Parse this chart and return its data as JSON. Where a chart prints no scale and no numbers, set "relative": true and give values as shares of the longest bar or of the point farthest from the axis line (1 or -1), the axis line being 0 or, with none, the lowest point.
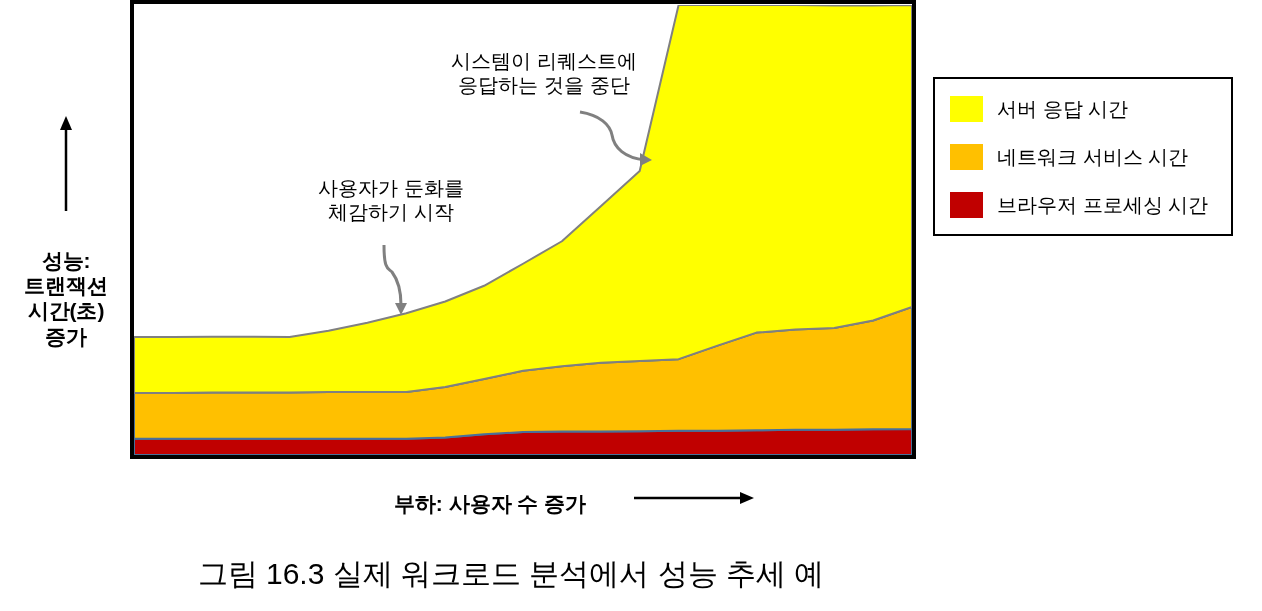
{
  "chart_data": {
    "type": "area",
    "stacked": true,
    "relative": true,
    "title": "그림 16.3 실제 워크로드 분석에서 성능 추세 예",
    "xlabel": "부하: 사용자 수 증가",
    "ylabel": "성능:\n트랜잭션\n시간(초)\n증가",
    "legend": "right",
    "grid": false,
    "categories": [
      null,
      null,
      null,
      null,
      null,
      null,
      null,
      null,
      null,
      null,
      null,
      null,
      null,
      null,
      null,
      null,
      null,
      null,
      null,
      null,
      null
    ],
    "series": [
      {
        "name": "브라우저 프로세싱 시간",
        "color": "#c00000",
        "values": [
          0.036,
          0.036,
          0.036,
          0.036,
          0.036,
          0.036,
          0.036,
          0.036,
          0.039,
          0.046,
          0.051,
          0.052,
          0.052,
          0.053,
          0.054,
          0.054,
          0.055,
          0.056,
          0.056,
          0.057,
          0.058
        ]
      },
      {
        "name": "네트워크 서비스 시간",
        "color": "#ffc000",
        "values": [
          0.102,
          0.102,
          0.103,
          0.103,
          0.103,
          0.104,
          0.104,
          0.104,
          0.112,
          0.123,
          0.136,
          0.145,
          0.153,
          0.156,
          0.159,
          0.189,
          0.217,
          0.223,
          0.226,
          0.242,
          0.271
        ]
      },
      {
        "name": "서버 응답 시간",
        "color": "#ffff00",
        "values": [
          0.124,
          0.124,
          0.124,
          0.124,
          0.123,
          0.136,
          0.154,
          0.175,
          0.19,
          0.207,
          0.238,
          0.278,
          0.348,
          0.422,
          0.787,
          0.757,
          0.728,
          0.721,
          0.717,
          0.7,
          0.671
        ]
      }
    ],
    "annotations": [
      "사용자가 둔화를\n체감하기 시작",
      "시스템이 리퀘스트에\n응답하는 것을 중단"
    ]
  }
}
